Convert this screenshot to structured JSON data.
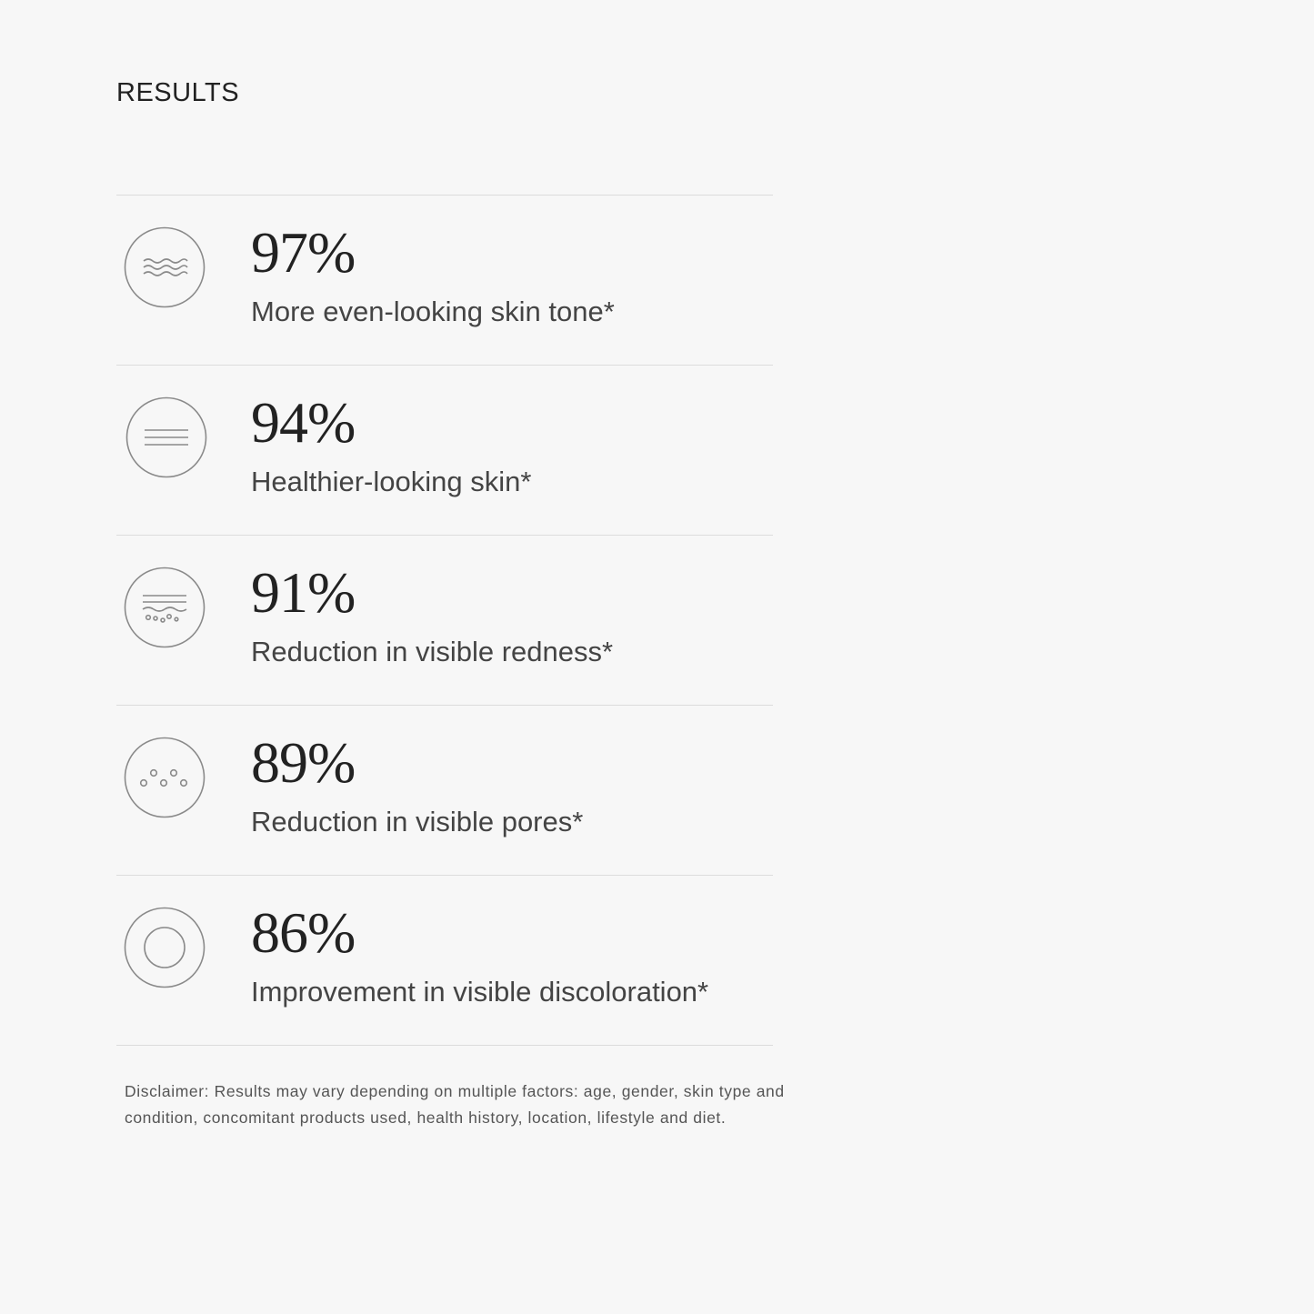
{
  "section_title": "RESULTS",
  "results": [
    {
      "icon": "waves-icon",
      "percent": "97%",
      "label": "More even-looking skin tone*"
    },
    {
      "icon": "lines-icon",
      "percent": "94%",
      "label": "Healthier-looking skin*"
    },
    {
      "icon": "redness-icon",
      "percent": "91%",
      "label": "Reduction in visible redness*"
    },
    {
      "icon": "pores-icon",
      "percent": "89%",
      "label": "Reduction in visible pores*"
    },
    {
      "icon": "discoloration-icon",
      "percent": "86%",
      "label": "Improvement in visible discoloration*"
    }
  ],
  "disclaimer": "Disclaimer: Results may vary depending on multiple factors: age, gender, skin type and condition, concomitant products used, health history, location, lifestyle and diet.",
  "colors": {
    "background": "#f7f7f7",
    "icon_stroke": "#8a8a8a",
    "divider": "#dcdcdc"
  }
}
